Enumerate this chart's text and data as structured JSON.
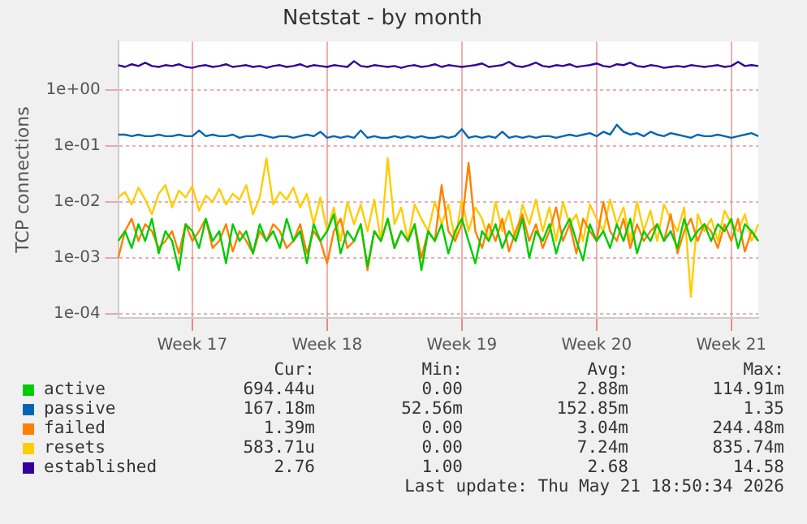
{
  "chart_data": {
    "type": "line",
    "title": "Netstat - by month",
    "ylabel": "TCP connections",
    "log": "y",
    "grid": true,
    "legend": "bottom",
    "marker": "none",
    "line_style": "solid",
    "ylim": [
      8.4e-05,
      7.4
    ],
    "yticks": [
      {
        "value": 0.0001,
        "label": "1e-04"
      },
      {
        "value": 0.001,
        "label": "1e-03"
      },
      {
        "value": 0.01,
        "label": "1e-02"
      },
      {
        "value": 0.1,
        "label": "1e-01"
      },
      {
        "value": 1,
        "label": "1e+00"
      }
    ],
    "categories": [
      null,
      null,
      null,
      null,
      null,
      null,
      null,
      null,
      null,
      null,
      null,
      "Week 17",
      null,
      null,
      null,
      null,
      null,
      null,
      null,
      null,
      null,
      null,
      null,
      null,
      null,
      null,
      null,
      null,
      null,
      null,
      null,
      "Week 18",
      null,
      null,
      null,
      null,
      null,
      null,
      null,
      null,
      null,
      null,
      null,
      null,
      null,
      null,
      null,
      null,
      null,
      null,
      null,
      "Week 19",
      null,
      null,
      null,
      null,
      null,
      null,
      null,
      null,
      null,
      null,
      null,
      null,
      null,
      null,
      null,
      null,
      null,
      null,
      null,
      "Week 20",
      null,
      null,
      null,
      null,
      null,
      null,
      null,
      null,
      null,
      null,
      null,
      null,
      null,
      null,
      null,
      null,
      null,
      null,
      null,
      "Week 21",
      null,
      null,
      null,
      null
    ],
    "series": [
      {
        "name": "active",
        "color": "#00cc00",
        "values": [
          0.002,
          0.003,
          0.0015,
          0.004,
          0.002,
          0.005,
          0.0012,
          0.003,
          0.002,
          0.0006,
          0.004,
          0.003,
          0.0015,
          0.005,
          0.002,
          0.003,
          0.0008,
          0.004,
          0.002,
          0.003,
          0.0012,
          0.004,
          0.002,
          0.003,
          0.0015,
          0.005,
          0.002,
          0.003,
          0.0008,
          0.004,
          0.002,
          0.003,
          0.006,
          0.0012,
          0.003,
          0.002,
          0.004,
          0.0007,
          0.003,
          0.002,
          0.005,
          0.0015,
          0.003,
          0.002,
          0.004,
          0.0006,
          0.003,
          0.002,
          0.004,
          0.0012,
          0.003,
          0.005,
          0.002,
          0.0008,
          0.003,
          0.002,
          0.004,
          0.0015,
          0.003,
          0.002,
          0.005,
          0.001,
          0.003,
          0.002,
          0.004,
          0.0012,
          0.003,
          0.005,
          0.002,
          0.0009,
          0.004,
          0.002,
          0.003,
          0.0015,
          0.004,
          0.002,
          0.005,
          0.0012,
          0.003,
          0.002,
          0.004,
          0.002,
          0.003,
          0.0015,
          0.005,
          0.002,
          0.003,
          0.004,
          0.002,
          0.004,
          0.003,
          0.005,
          0.0015,
          0.004,
          0.003,
          0.002
        ]
      },
      {
        "name": "passive",
        "color": "#0066b3",
        "values": [
          0.16,
          0.16,
          0.15,
          0.16,
          0.15,
          0.15,
          0.16,
          0.15,
          0.15,
          0.16,
          0.15,
          0.15,
          0.19,
          0.15,
          0.16,
          0.15,
          0.15,
          0.16,
          0.14,
          0.15,
          0.15,
          0.16,
          0.15,
          0.14,
          0.15,
          0.15,
          0.14,
          0.15,
          0.16,
          0.15,
          0.18,
          0.14,
          0.15,
          0.14,
          0.15,
          0.14,
          0.19,
          0.14,
          0.15,
          0.14,
          0.14,
          0.15,
          0.14,
          0.15,
          0.14,
          0.15,
          0.14,
          0.14,
          0.15,
          0.14,
          0.15,
          0.2,
          0.14,
          0.15,
          0.14,
          0.15,
          0.14,
          0.18,
          0.14,
          0.15,
          0.14,
          0.15,
          0.14,
          0.15,
          0.15,
          0.14,
          0.15,
          0.16,
          0.15,
          0.16,
          0.17,
          0.15,
          0.18,
          0.16,
          0.24,
          0.18,
          0.16,
          0.17,
          0.15,
          0.18,
          0.16,
          0.15,
          0.17,
          0.16,
          0.15,
          0.14,
          0.16,
          0.15,
          0.15,
          0.16,
          0.15,
          0.14,
          0.15,
          0.16,
          0.17,
          0.15
        ]
      },
      {
        "name": "failed",
        "color": "#ff8000",
        "values": [
          0.001,
          0.003,
          0.005,
          0.002,
          0.004,
          0.003,
          0.0015,
          0.002,
          0.003,
          0.0012,
          0.004,
          0.002,
          0.003,
          0.005,
          0.0015,
          0.002,
          0.004,
          0.0013,
          0.003,
          0.002,
          0.0012,
          0.003,
          0.002,
          0.004,
          0.003,
          0.0015,
          0.002,
          0.004,
          0.0012,
          0.003,
          0.002,
          0.0008,
          0.003,
          0.005,
          0.0015,
          0.002,
          0.004,
          0.0006,
          0.003,
          0.002,
          0.005,
          0.0015,
          0.003,
          0.002,
          0.004,
          0.001,
          0.003,
          0.002,
          0.02,
          0.003,
          0.002,
          0.004,
          0.05,
          0.003,
          0.0015,
          0.004,
          0.002,
          0.005,
          0.0013,
          0.003,
          0.006,
          0.002,
          0.004,
          0.0015,
          0.003,
          0.008,
          0.002,
          0.004,
          0.0012,
          0.005,
          0.003,
          0.002,
          0.01,
          0.003,
          0.002,
          0.005,
          0.0015,
          0.004,
          0.002,
          0.003,
          0.004,
          0.002,
          0.006,
          0.0012,
          0.003,
          0.005,
          0.002,
          0.004,
          0.003,
          0.0015,
          0.004,
          0.002,
          0.005,
          0.0013,
          0.003,
          0.002
        ]
      },
      {
        "name": "resets",
        "color": "#ffcc00",
        "values": [
          0.012,
          0.015,
          0.009,
          0.018,
          0.011,
          0.006,
          0.014,
          0.02,
          0.008,
          0.016,
          0.012,
          0.019,
          0.007,
          0.013,
          0.01,
          0.017,
          0.009,
          0.014,
          0.011,
          0.02,
          0.006,
          0.012,
          0.06,
          0.009,
          0.015,
          0.011,
          0.018,
          0.008,
          0.014,
          0.004,
          0.012,
          0.003,
          0.008,
          0.002,
          0.01,
          0.004,
          0.009,
          0.003,
          0.011,
          0.002,
          0.06,
          0.004,
          0.008,
          0.002,
          0.009,
          0.005,
          0.003,
          0.01,
          0.004,
          0.009,
          0.002,
          0.011,
          0.003,
          0.008,
          0.005,
          0.002,
          0.01,
          0.003,
          0.007,
          0.002,
          0.009,
          0.004,
          0.011,
          0.003,
          0.008,
          0.002,
          0.01,
          0.004,
          0.006,
          0.002,
          0.009,
          0.005,
          0.003,
          0.011,
          0.004,
          0.008,
          0.002,
          0.01,
          0.003,
          0.007,
          0.002,
          0.009,
          0.005,
          0.003,
          0.008,
          0.0002,
          0.006,
          0.003,
          0.005,
          0.002,
          0.007,
          0.004,
          0.003,
          0.006,
          0.002,
          0.004
        ]
      },
      {
        "name": "established",
        "color": "#330099",
        "values": [
          2.8,
          2.6,
          2.9,
          2.7,
          3.1,
          2.7,
          2.6,
          2.8,
          2.7,
          2.9,
          2.6,
          2.5,
          2.7,
          2.8,
          2.6,
          2.7,
          2.9,
          2.6,
          2.7,
          2.8,
          2.6,
          2.7,
          2.5,
          2.7,
          2.8,
          2.6,
          2.7,
          2.9,
          2.6,
          2.8,
          2.7,
          2.6,
          2.8,
          2.7,
          2.6,
          3.3,
          2.7,
          2.6,
          2.8,
          2.7,
          2.6,
          2.7,
          2.5,
          2.7,
          2.8,
          2.6,
          2.7,
          2.9,
          2.6,
          2.8,
          2.7,
          2.6,
          2.7,
          2.8,
          3.0,
          2.6,
          2.7,
          2.8,
          3.2,
          2.7,
          2.6,
          2.8,
          3.1,
          2.7,
          2.6,
          2.8,
          2.7,
          2.9,
          2.6,
          2.7,
          2.8,
          3.0,
          2.7,
          2.6,
          2.9,
          2.8,
          3.1,
          2.7,
          2.6,
          2.8,
          2.7,
          2.5,
          2.6,
          2.7,
          2.6,
          2.8,
          2.7,
          2.6,
          2.7,
          2.8,
          2.6,
          2.7,
          3.2,
          2.7,
          2.8,
          2.7
        ]
      }
    ],
    "annotations": [
      "Cur:",
      "Min:",
      "Avg:",
      "Max:",
      "694.44u",
      "0.00",
      "2.88m",
      "114.91m",
      "167.18m",
      "52.56m",
      "152.85m",
      "1.35",
      "1.39m",
      "0.00",
      "3.04m",
      "244.48m",
      "583.71u",
      "0.00",
      "7.24m",
      "835.74m",
      "2.76",
      "1.00",
      "2.68",
      "14.58",
      "Last update: Thu May 21 18:50:34 2026"
    ]
  }
}
